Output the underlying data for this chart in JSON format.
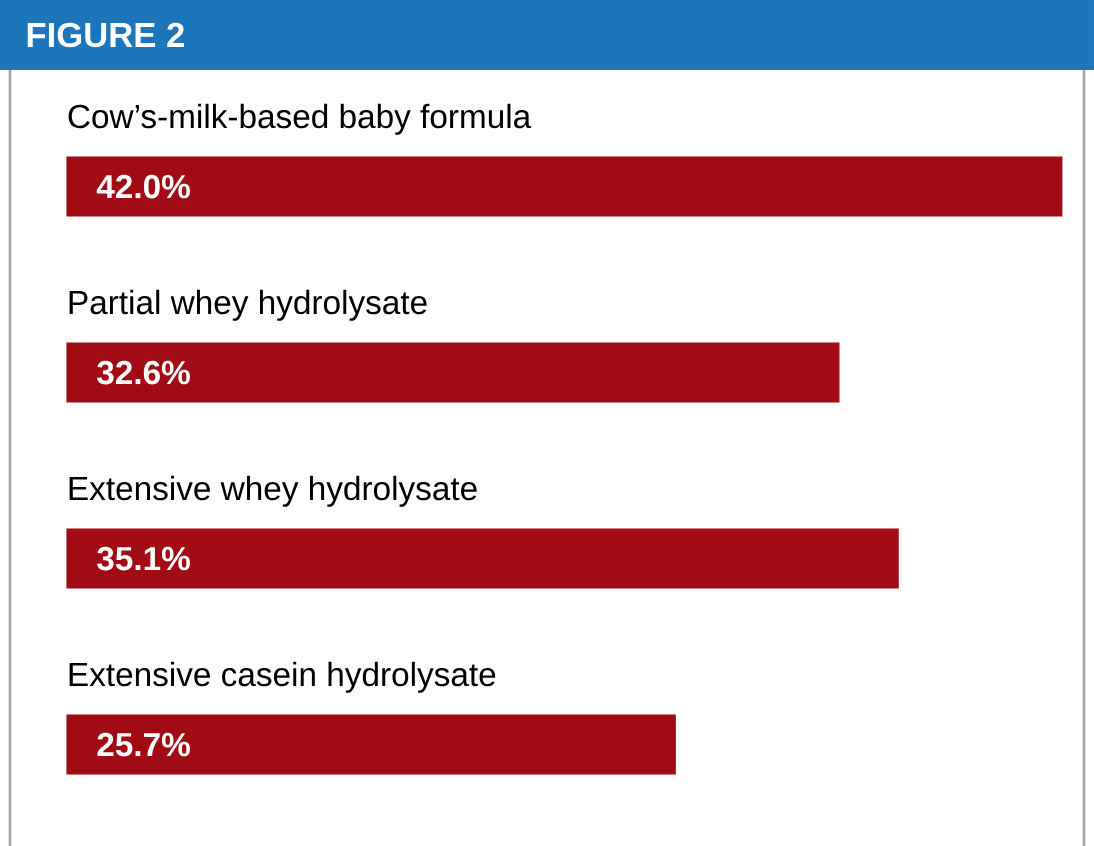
{
  "chart_data": {
    "type": "bar",
    "orientation": "horizontal",
    "title": "FIGURE 2",
    "categories": [
      "Cow’s-milk-based baby formula",
      "Partial whey hydrolysate",
      "Extensive whey hydrolysate",
      "Extensive casein hydrolysate"
    ],
    "values": [
      42.0,
      32.6,
      35.1,
      25.7
    ],
    "value_labels": [
      "42.0%",
      "32.6%",
      "35.1%",
      "25.7%"
    ],
    "color": "#a00b14"
  }
}
